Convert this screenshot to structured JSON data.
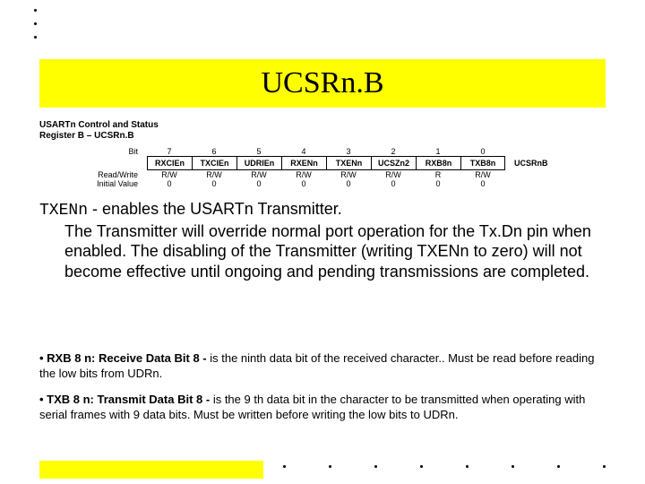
{
  "title": "UCSRn.B",
  "register": {
    "heading_l1": "USARTn Control and Status",
    "heading_l2": "Register B – UCSRn.B",
    "bit_label": "Bit",
    "rw_label": "Read/Write",
    "init_label": "Initial Value",
    "right_label": "UCSRnB",
    "bit_nums": [
      "7",
      "6",
      "5",
      "4",
      "3",
      "2",
      "1",
      "0"
    ],
    "bit_names": [
      "RXCIEn",
      "TXCIEn",
      "UDRIEn",
      "RXENn",
      "TXENn",
      "UCSZn2",
      "RXB8n",
      "TXB8n"
    ],
    "rw": [
      "R/W",
      "R/W",
      "R/W",
      "R/W",
      "R/W",
      "R/W",
      "R",
      "R/W"
    ],
    "init": [
      "0",
      "0",
      "0",
      "0",
      "0",
      "0",
      "0",
      "0"
    ]
  },
  "body": {
    "line1a": "TXENn",
    "line1b": " - enables the USARTn Transmitter.",
    "para": "The Transmitter will override normal port operation for the Tx.Dn pin when enabled. The disabling of the Transmitter (writing TXENn to zero) will not become effective until ongoing and pending transmissions are completed."
  },
  "notes": {
    "n1_bold": "• RXB 8 n: Receive Data Bit 8 - ",
    "n1_rest": "is the ninth data bit of the received character.. Must be read before reading the low bits from UDRn.",
    "n2_bold": "• TXB 8 n: Transmit Data Bit 8 - ",
    "n2_rest": "is the 9 th data bit in the character to be transmitted when operating with serial frames with 9 data bits. Must be written before writing the low bits to UDRn."
  }
}
